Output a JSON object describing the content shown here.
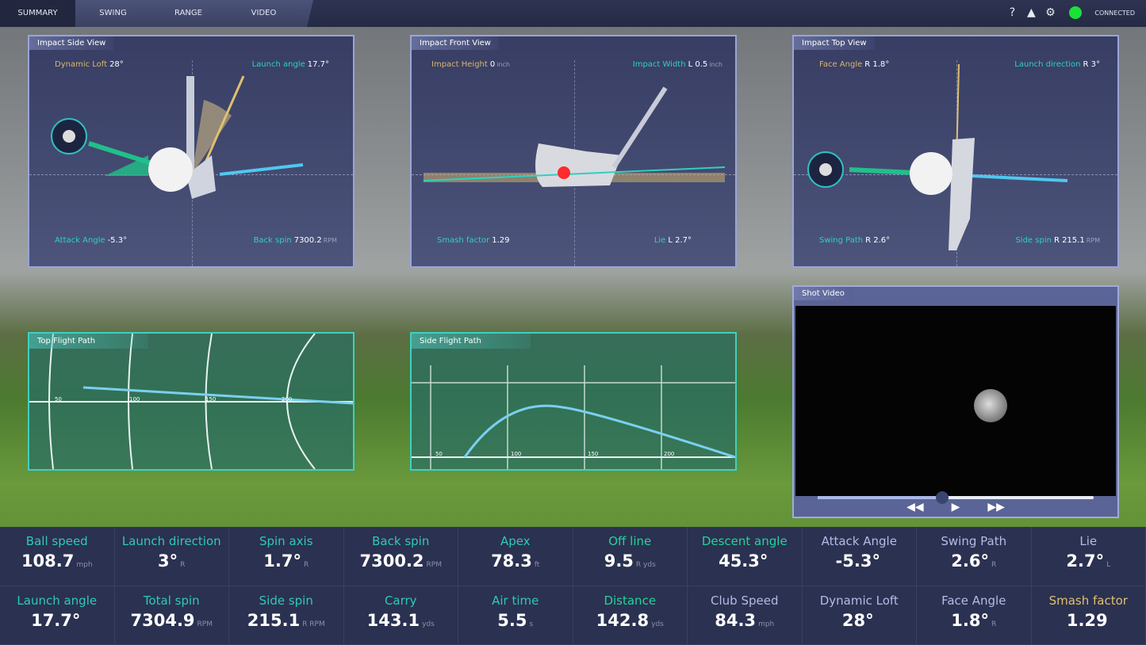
{
  "tabs": [
    "SUMMARY",
    "SWING",
    "RANGE",
    "VIDEO"
  ],
  "active_tab": "SUMMARY",
  "status": {
    "icons": [
      "help-icon",
      "warning-icon",
      "gear-icon"
    ],
    "connection_label": "CONNECTED",
    "connection_color": "#19e238"
  },
  "side_view": {
    "title": "Impact Side View",
    "dynamic_loft": {
      "label": "Dynamic Loft",
      "value": "28°"
    },
    "launch_angle": {
      "label": "Launch angle",
      "value": "17.7°"
    },
    "attack_angle": {
      "label": "Attack Angle",
      "value": "-5.3°"
    },
    "back_spin": {
      "label": "Back spin",
      "value": "7300.2",
      "unit": "RPM"
    }
  },
  "front_view": {
    "title": "Impact Front View",
    "impact_height": {
      "label": "Impact Height",
      "value": "0",
      "unit": "inch"
    },
    "impact_width": {
      "label": "Impact Width",
      "value": "L 0.5",
      "unit": "inch"
    },
    "smash_factor": {
      "label": "Smash factor",
      "value": "1.29"
    },
    "lie": {
      "label": "Lie",
      "value": "L 2.7°"
    }
  },
  "top_view": {
    "title": "Impact Top View",
    "face_angle": {
      "label": "Face Angle",
      "value": "R 1.8°"
    },
    "launch_direction": {
      "label": "Launch direction",
      "value": "R 3°"
    },
    "swing_path": {
      "label": "Swing Path",
      "value": "R 2.6°"
    },
    "side_spin": {
      "label": "Side spin",
      "value": "R 215.1",
      "unit": "RPM"
    }
  },
  "top_flight": {
    "title": "Top Flight Path",
    "ticks": [
      "50",
      "100",
      "150",
      "200"
    ]
  },
  "side_flight": {
    "title": "Side Flight Path",
    "ticks": [
      "50",
      "100",
      "150",
      "200"
    ]
  },
  "video": {
    "title": "Shot Video",
    "progress": 0.45,
    "controls": [
      "rewind",
      "play",
      "fast-forward"
    ]
  },
  "stats": [
    {
      "label": "Ball speed",
      "value": "108.7",
      "unit": "mph",
      "color": "teal"
    },
    {
      "label": "Launch direction",
      "value": "3°",
      "unit": "R",
      "color": "teal"
    },
    {
      "label": "Spin axis",
      "value": "1.7°",
      "unit": "R",
      "color": "teal"
    },
    {
      "label": "Back spin",
      "value": "7300.2",
      "unit": "RPM",
      "color": "teal"
    },
    {
      "label": "Apex",
      "value": "78.3",
      "unit": "ft",
      "color": "teal"
    },
    {
      "label": "Off line",
      "value": "9.5",
      "unit": "R yds",
      "color": "green"
    },
    {
      "label": "Descent angle",
      "value": "45.3°",
      "unit": "",
      "color": "green"
    },
    {
      "label": "Attack Angle",
      "value": "-5.3°",
      "unit": "",
      "color": "lav"
    },
    {
      "label": "Swing Path",
      "value": "2.6°",
      "unit": "R",
      "color": "lav"
    },
    {
      "label": "Lie",
      "value": "2.7°",
      "unit": "L",
      "color": "lav"
    },
    {
      "label": "Launch angle",
      "value": "17.7°",
      "unit": "",
      "color": "teal"
    },
    {
      "label": "Total spin",
      "value": "7304.9",
      "unit": "RPM",
      "color": "teal"
    },
    {
      "label": "Side spin",
      "value": "215.1",
      "unit": "R RPM",
      "color": "teal"
    },
    {
      "label": "Carry",
      "value": "143.1",
      "unit": "yds",
      "color": "teal"
    },
    {
      "label": "Air time",
      "value": "5.5",
      "unit": "s",
      "color": "teal"
    },
    {
      "label": "Distance",
      "value": "142.8",
      "unit": "yds",
      "color": "green"
    },
    {
      "label": "Club Speed",
      "value": "84.3",
      "unit": "mph",
      "color": "lav"
    },
    {
      "label": "Dynamic Loft",
      "value": "28°",
      "unit": "",
      "color": "lav"
    },
    {
      "label": "Face Angle",
      "value": "1.8°",
      "unit": "R",
      "color": "lav"
    },
    {
      "label": "Smash factor",
      "value": "1.29",
      "unit": "",
      "color": "gold"
    }
  ]
}
